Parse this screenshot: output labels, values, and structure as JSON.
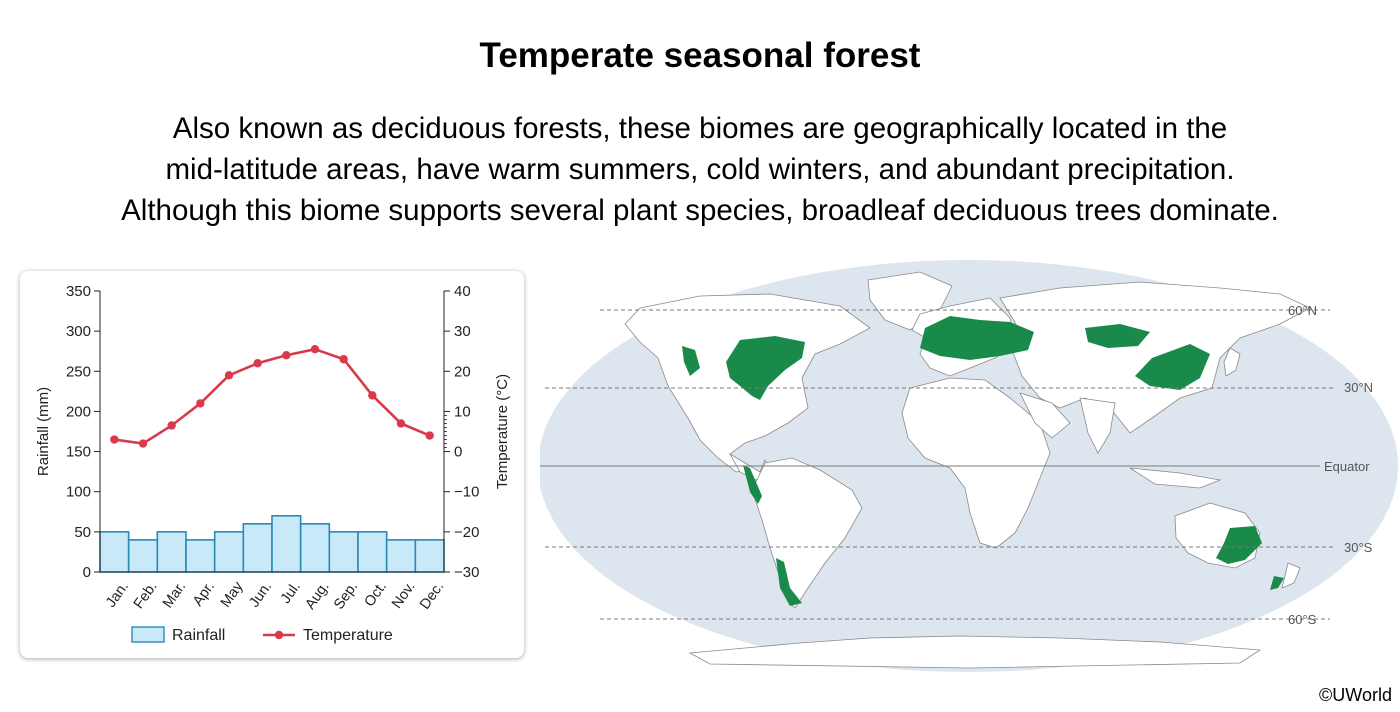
{
  "title": "Temperate seasonal forest",
  "description": [
    "Also known as deciduous forests, these biomes are geographically located in the",
    "mid-latitude areas, have warm summers, cold winters, and abundant precipitation.",
    "Although this biome supports several plant species, broadleaf deciduous trees dominate."
  ],
  "chart_data": {
    "type": "bar+line",
    "categories": [
      "Jan.",
      "Feb.",
      "Mar.",
      "Apr.",
      "May",
      "Jun.",
      "Jul.",
      "Aug.",
      "Sep.",
      "Oct.",
      "Nov.",
      "Dec."
    ],
    "series": [
      {
        "name": "Rainfall",
        "type": "bar",
        "axis": "left",
        "values": [
          50,
          40,
          50,
          40,
          50,
          60,
          70,
          60,
          50,
          50,
          40,
          40
        ]
      },
      {
        "name": "Temperature",
        "type": "line",
        "axis": "right",
        "values": [
          3,
          2,
          6.5,
          12,
          19,
          22,
          24,
          25.5,
          23,
          14,
          7,
          4
        ]
      }
    ],
    "ylabel_left": "Rainfall (mm)",
    "ylabel_right": "Temperature (°C)",
    "ylim_left": [
      0,
      350
    ],
    "ylim_right": [
      -30,
      40
    ],
    "yticks_left": [
      "0",
      "50",
      "100",
      "150",
      "200",
      "250",
      "300",
      "350"
    ],
    "yticks_right": [
      "−30",
      "−20",
      "−10",
      "0",
      "10",
      "20",
      "30",
      "40"
    ],
    "legend_position": "bottom",
    "colors": {
      "bar_fill": "#c9e9f8",
      "bar_stroke": "#2a8ab8",
      "line": "#d9394a"
    }
  },
  "map": {
    "latitude_labels": [
      "60°N",
      "30°N",
      "Equator",
      "30°S",
      "60°S"
    ],
    "colors": {
      "ocean": "#dde5ee",
      "land": "#ffffff",
      "forest": "#1a8a4a",
      "borders": "#888888"
    }
  },
  "copyright": "©UWorld"
}
